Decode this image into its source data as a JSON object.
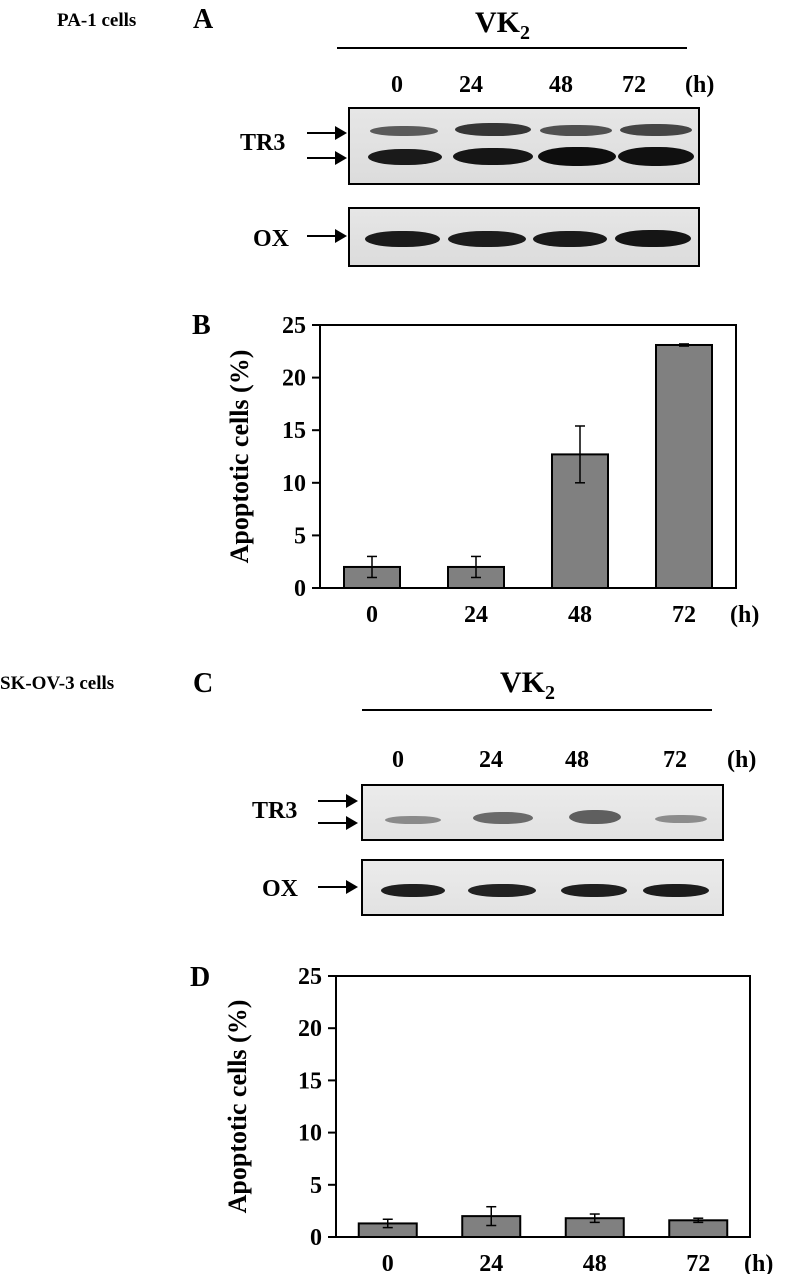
{
  "panel_a": {
    "cell_line": "PA-1 cells",
    "letter": "A",
    "treatment_main": "VK",
    "treatment_sub": "2",
    "lanes": [
      "0",
      "24",
      "48",
      "72"
    ],
    "unit": "(h)",
    "rows": [
      "TR3",
      "OX"
    ]
  },
  "panel_b": {
    "letter": "B",
    "ylabel": "Apoptotic cells (%)",
    "unit": "(h)",
    "y_ticks": [
      "0",
      "5",
      "10",
      "15",
      "20",
      "25"
    ],
    "bar_color": "#808080"
  },
  "panel_c": {
    "cell_line": "SK-OV-3 cells",
    "letter": "C",
    "treatment_main": "VK",
    "treatment_sub": "2",
    "lanes": [
      "0",
      "24",
      "48",
      "72"
    ],
    "unit": "(h)",
    "rows": [
      "TR3",
      "OX"
    ]
  },
  "panel_d": {
    "letter": "D",
    "ylabel": "Apoptotic cells (%)",
    "unit": "(h)",
    "y_ticks": [
      "0",
      "5",
      "10",
      "15",
      "20",
      "25"
    ],
    "bar_color": "#808080"
  },
  "chart_data": [
    {
      "type": "bar",
      "panel": "B",
      "title": "",
      "xlabel": "(h)",
      "ylabel": "Apoptotic cells (%)",
      "categories": [
        "0",
        "24",
        "48",
        "72"
      ],
      "values": [
        2.0,
        2.0,
        12.7,
        23.1
      ],
      "errors": [
        1.0,
        1.0,
        2.7,
        0.1
      ],
      "ylim": [
        0,
        25
      ],
      "grid": false,
      "legend": "none"
    },
    {
      "type": "bar",
      "panel": "D",
      "title": "",
      "xlabel": "(h)",
      "ylabel": "Apoptotic cells (%)",
      "categories": [
        "0",
        "24",
        "48",
        "72"
      ],
      "values": [
        1.3,
        2.0,
        1.8,
        1.6
      ],
      "errors": [
        0.4,
        0.9,
        0.4,
        0.2
      ],
      "ylim": [
        0,
        25
      ],
      "grid": false,
      "legend": "none"
    }
  ]
}
